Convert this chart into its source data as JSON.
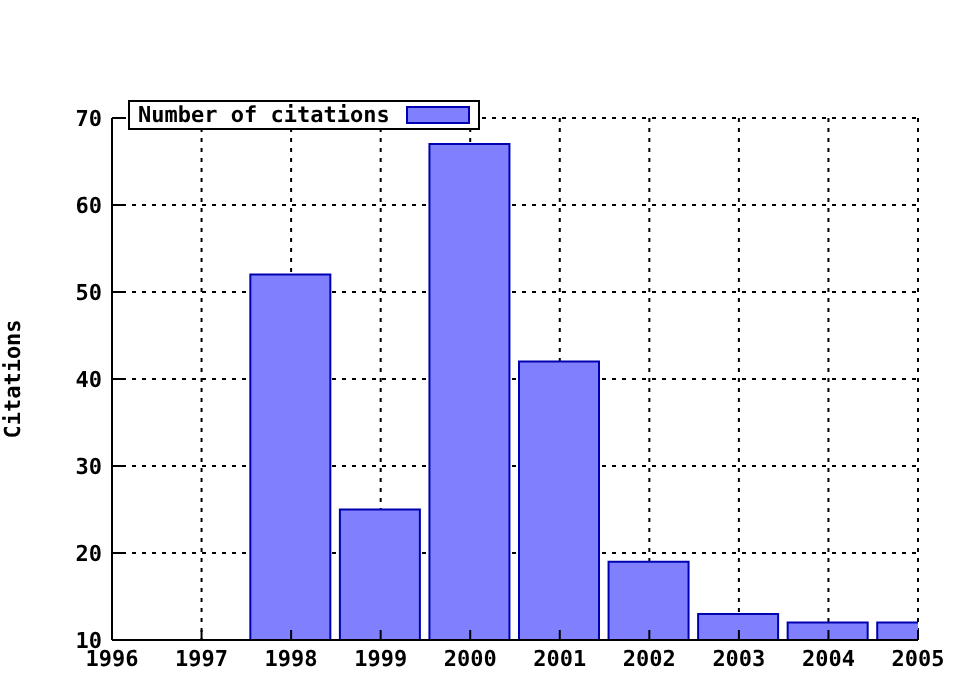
{
  "chart_data": {
    "type": "bar",
    "ylabel": "Citations",
    "x": [
      1998,
      1999,
      2000,
      2001,
      2002,
      2003,
      2004,
      2005
    ],
    "series": [
      {
        "name": "Number of citations",
        "color": "#8080ff",
        "values": [
          52,
          25,
          67,
          42,
          19,
          13,
          12,
          12
        ]
      }
    ],
    "xlim": [
      1996,
      2005
    ],
    "xticks": [
      1996,
      1997,
      1998,
      1999,
      2000,
      2001,
      2002,
      2003,
      2004,
      2005
    ],
    "ylim": [
      10,
      70
    ],
    "yticks": [
      10,
      20,
      30,
      40,
      50,
      60,
      70
    ],
    "grid": true,
    "legend": "top left"
  }
}
